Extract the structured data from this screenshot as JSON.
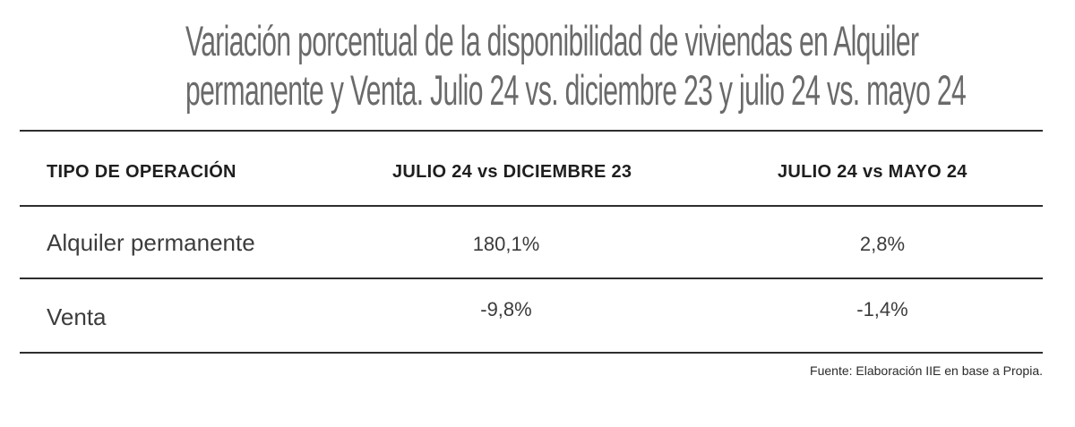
{
  "title": {
    "line1": "Variación porcentual de la disponibilidad de viviendas en Alquiler",
    "line2": "permanente y Venta. Julio 24 vs. diciembre 23 y julio 24 vs. mayo 24"
  },
  "table": {
    "headers": [
      "TIPO DE OPERACIÓN",
      "JULIO 24 vs DICIEMBRE 23",
      "JULIO 24 vs MAYO 24"
    ],
    "rows": [
      {
        "label": "Alquiler permanente",
        "jul_vs_dic": "180,1%",
        "jul_vs_may": "2,8%"
      },
      {
        "label": "Venta",
        "jul_vs_dic": "-9,8%",
        "jul_vs_may": "-1,4%"
      }
    ]
  },
  "source": "Fuente: Elaboración IIE en base a Propia."
}
